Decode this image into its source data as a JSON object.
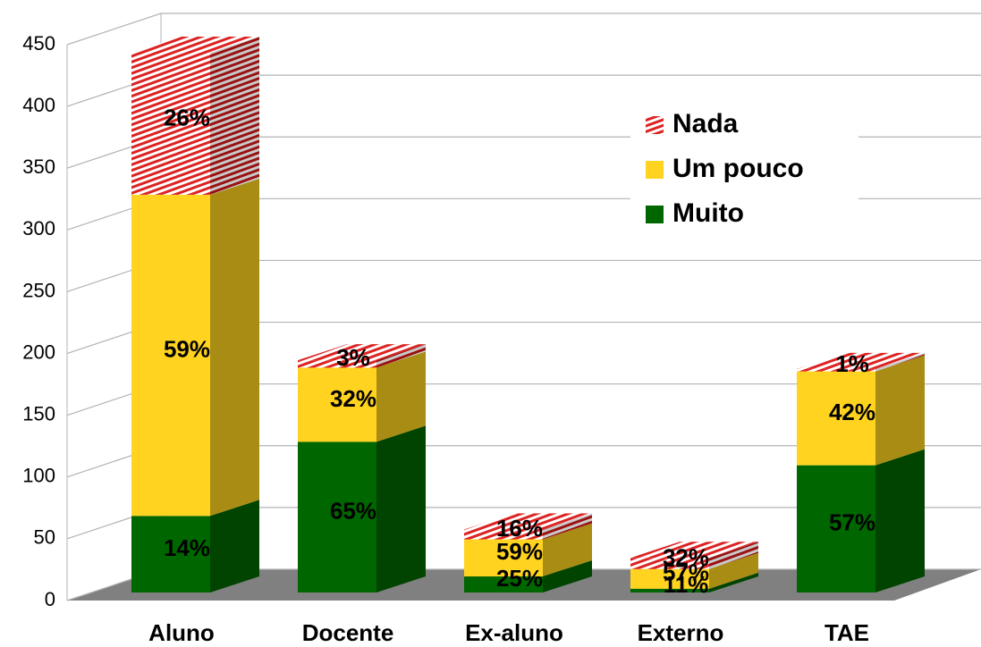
{
  "chart_data": {
    "type": "bar3d_stacked",
    "categories": [
      "Aluno",
      "Docente",
      "Ex-aluno",
      "Externo",
      "TAE"
    ],
    "series": [
      {
        "name": "Muito",
        "color": "#006600",
        "values": [
          62,
          122,
          13,
          3,
          103
        ],
        "percent_labels": [
          "14%",
          "65%",
          "25%",
          "11%",
          "57%"
        ]
      },
      {
        "name": "Um pouco",
        "color": "#ffd320",
        "values": [
          260,
          60,
          30,
          16,
          76
        ],
        "percent_labels": [
          "59%",
          "32%",
          "59%",
          "57%",
          "42%"
        ]
      },
      {
        "name": "Nada",
        "color": "#dd2222",
        "values": [
          115,
          6,
          8,
          9,
          2
        ],
        "percent_labels": [
          "26%",
          "3%",
          "16%",
          "32%",
          "1%"
        ]
      }
    ],
    "ylim": [
      0,
      450
    ],
    "yticks": [
      0,
      50,
      100,
      150,
      200,
      250,
      300,
      350,
      400,
      450
    ],
    "grid": true,
    "legend": "upper right"
  }
}
